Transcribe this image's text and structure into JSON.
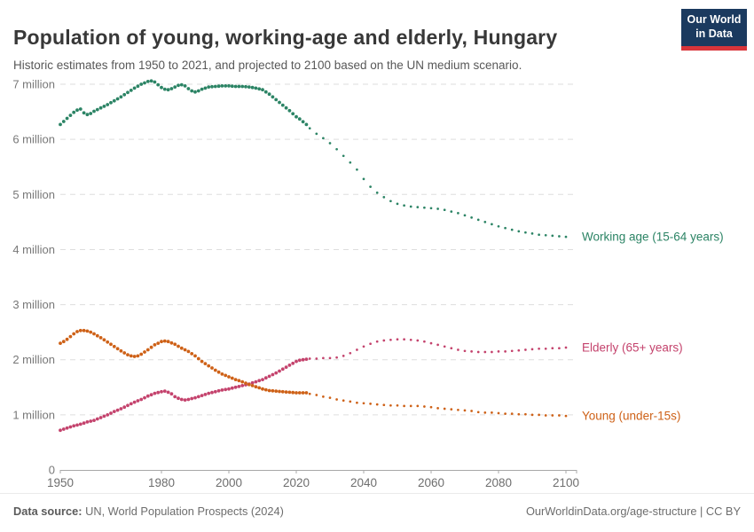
{
  "header": {
    "title": "Population of young, working-age and elderly, Hungary",
    "subtitle": "Historic estimates from 1950 to 2021, and projected to 2100 based on the UN medium scenario.",
    "logo_line1": "Our World",
    "logo_line2": "in Data"
  },
  "footer": {
    "source_label": "Data source:",
    "source_text": " UN, World Population Prospects (2024)",
    "link_text": "OurWorldinData.org/age-structure | CC BY"
  },
  "chart_data": {
    "type": "line",
    "title": "Population of young, working-age and elderly, Hungary",
    "xlabel": "",
    "ylabel": "",
    "grid": true,
    "legend_position": "right-end-labels",
    "x_axis": {
      "ticks": [
        1950,
        1980,
        2000,
        2020,
        2040,
        2060,
        2080,
        2100
      ],
      "range": [
        1950,
        2103
      ]
    },
    "y_axis": {
      "tick_values": [
        0,
        1,
        2,
        3,
        4,
        5,
        6,
        7
      ],
      "tick_labels": [
        "0",
        "1 million",
        "2 million",
        "3 million",
        "4 million",
        "5 million",
        "6 million",
        "7 million"
      ],
      "range": [
        0,
        7.3
      ],
      "unit": "people (millions)"
    },
    "projection_start_year": 2024,
    "series": [
      {
        "name": "Working age (15-64 years)",
        "color": "#2c8465",
        "historic": [
          [
            1950,
            6.27
          ],
          [
            1952,
            6.38
          ],
          [
            1954,
            6.49
          ],
          [
            1955,
            6.53
          ],
          [
            1956,
            6.55
          ],
          [
            1957,
            6.48
          ],
          [
            1958,
            6.45
          ],
          [
            1959,
            6.47
          ],
          [
            1960,
            6.51
          ],
          [
            1962,
            6.57
          ],
          [
            1964,
            6.63
          ],
          [
            1966,
            6.7
          ],
          [
            1968,
            6.77
          ],
          [
            1970,
            6.85
          ],
          [
            1972,
            6.93
          ],
          [
            1974,
            7.0
          ],
          [
            1976,
            7.05
          ],
          [
            1977,
            7.06
          ],
          [
            1978,
            7.04
          ],
          [
            1979,
            6.99
          ],
          [
            1980,
            6.94
          ],
          [
            1981,
            6.91
          ],
          [
            1982,
            6.9
          ],
          [
            1983,
            6.92
          ],
          [
            1984,
            6.95
          ],
          [
            1985,
            6.98
          ],
          [
            1986,
            6.99
          ],
          [
            1987,
            6.97
          ],
          [
            1988,
            6.92
          ],
          [
            1989,
            6.88
          ],
          [
            1990,
            6.86
          ],
          [
            1991,
            6.88
          ],
          [
            1992,
            6.91
          ],
          [
            1994,
            6.95
          ],
          [
            1996,
            6.96
          ],
          [
            1998,
            6.97
          ],
          [
            2000,
            6.97
          ],
          [
            2002,
            6.96
          ],
          [
            2004,
            6.96
          ],
          [
            2006,
            6.95
          ],
          [
            2008,
            6.93
          ],
          [
            2010,
            6.9
          ],
          [
            2012,
            6.82
          ],
          [
            2014,
            6.72
          ],
          [
            2016,
            6.62
          ],
          [
            2018,
            6.52
          ],
          [
            2020,
            6.41
          ],
          [
            2021,
            6.37
          ],
          [
            2022,
            6.32
          ],
          [
            2023,
            6.27
          ]
        ],
        "projected": [
          [
            2024,
            6.2
          ],
          [
            2026,
            6.1
          ],
          [
            2028,
            6.02
          ],
          [
            2030,
            5.93
          ],
          [
            2032,
            5.82
          ],
          [
            2034,
            5.7
          ],
          [
            2036,
            5.58
          ],
          [
            2038,
            5.45
          ],
          [
            2040,
            5.28
          ],
          [
            2042,
            5.14
          ],
          [
            2044,
            5.03
          ],
          [
            2046,
            4.95
          ],
          [
            2048,
            4.88
          ],
          [
            2050,
            4.83
          ],
          [
            2052,
            4.8
          ],
          [
            2054,
            4.78
          ],
          [
            2056,
            4.77
          ],
          [
            2058,
            4.76
          ],
          [
            2060,
            4.75
          ],
          [
            2062,
            4.74
          ],
          [
            2064,
            4.72
          ],
          [
            2066,
            4.69
          ],
          [
            2068,
            4.66
          ],
          [
            2070,
            4.62
          ],
          [
            2072,
            4.58
          ],
          [
            2074,
            4.54
          ],
          [
            2076,
            4.5
          ],
          [
            2078,
            4.46
          ],
          [
            2080,
            4.42
          ],
          [
            2082,
            4.39
          ],
          [
            2084,
            4.36
          ],
          [
            2086,
            4.33
          ],
          [
            2088,
            4.31
          ],
          [
            2090,
            4.29
          ],
          [
            2092,
            4.27
          ],
          [
            2094,
            4.26
          ],
          [
            2096,
            4.25
          ],
          [
            2098,
            4.24
          ],
          [
            2100,
            4.23
          ]
        ]
      },
      {
        "name": "Elderly (65+ years)",
        "color": "#c4436d",
        "historic": [
          [
            1950,
            0.72
          ],
          [
            1952,
            0.76
          ],
          [
            1954,
            0.8
          ],
          [
            1956,
            0.83
          ],
          [
            1958,
            0.87
          ],
          [
            1960,
            0.9
          ],
          [
            1962,
            0.95
          ],
          [
            1964,
            1.0
          ],
          [
            1966,
            1.06
          ],
          [
            1968,
            1.11
          ],
          [
            1970,
            1.17
          ],
          [
            1972,
            1.23
          ],
          [
            1974,
            1.28
          ],
          [
            1976,
            1.34
          ],
          [
            1978,
            1.39
          ],
          [
            1980,
            1.42
          ],
          [
            1981,
            1.43
          ],
          [
            1982,
            1.41
          ],
          [
            1983,
            1.38
          ],
          [
            1984,
            1.33
          ],
          [
            1985,
            1.3
          ],
          [
            1986,
            1.28
          ],
          [
            1987,
            1.27
          ],
          [
            1988,
            1.28
          ],
          [
            1990,
            1.31
          ],
          [
            1992,
            1.35
          ],
          [
            1994,
            1.39
          ],
          [
            1996,
            1.42
          ],
          [
            1998,
            1.45
          ],
          [
            2000,
            1.47
          ],
          [
            2002,
            1.5
          ],
          [
            2004,
            1.53
          ],
          [
            2006,
            1.56
          ],
          [
            2008,
            1.6
          ],
          [
            2010,
            1.64
          ],
          [
            2012,
            1.7
          ],
          [
            2014,
            1.76
          ],
          [
            2016,
            1.83
          ],
          [
            2018,
            1.9
          ],
          [
            2020,
            1.97
          ],
          [
            2021,
            1.99
          ],
          [
            2022,
            2.0
          ],
          [
            2023,
            2.01
          ]
        ],
        "projected": [
          [
            2024,
            2.02
          ],
          [
            2026,
            2.02
          ],
          [
            2028,
            2.03
          ],
          [
            2030,
            2.03
          ],
          [
            2032,
            2.04
          ],
          [
            2034,
            2.07
          ],
          [
            2036,
            2.12
          ],
          [
            2038,
            2.18
          ],
          [
            2040,
            2.24
          ],
          [
            2042,
            2.29
          ],
          [
            2044,
            2.33
          ],
          [
            2046,
            2.35
          ],
          [
            2048,
            2.36
          ],
          [
            2050,
            2.37
          ],
          [
            2052,
            2.37
          ],
          [
            2054,
            2.36
          ],
          [
            2056,
            2.35
          ],
          [
            2058,
            2.33
          ],
          [
            2060,
            2.3
          ],
          [
            2062,
            2.27
          ],
          [
            2064,
            2.24
          ],
          [
            2066,
            2.21
          ],
          [
            2068,
            2.18
          ],
          [
            2070,
            2.16
          ],
          [
            2072,
            2.15
          ],
          [
            2074,
            2.14
          ],
          [
            2076,
            2.14
          ],
          [
            2078,
            2.14
          ],
          [
            2080,
            2.15
          ],
          [
            2082,
            2.15
          ],
          [
            2084,
            2.16
          ],
          [
            2086,
            2.17
          ],
          [
            2088,
            2.18
          ],
          [
            2090,
            2.19
          ],
          [
            2092,
            2.2
          ],
          [
            2094,
            2.2
          ],
          [
            2096,
            2.21
          ],
          [
            2098,
            2.21
          ],
          [
            2100,
            2.22
          ]
        ]
      },
      {
        "name": "Young (under-15s)",
        "color": "#ce6117",
        "historic": [
          [
            1950,
            2.3
          ],
          [
            1951,
            2.33
          ],
          [
            1952,
            2.37
          ],
          [
            1953,
            2.42
          ],
          [
            1954,
            2.47
          ],
          [
            1955,
            2.51
          ],
          [
            1956,
            2.53
          ],
          [
            1957,
            2.53
          ],
          [
            1958,
            2.52
          ],
          [
            1959,
            2.5
          ],
          [
            1960,
            2.47
          ],
          [
            1962,
            2.4
          ],
          [
            1964,
            2.32
          ],
          [
            1966,
            2.24
          ],
          [
            1968,
            2.16
          ],
          [
            1970,
            2.09
          ],
          [
            1971,
            2.07
          ],
          [
            1972,
            2.06
          ],
          [
            1973,
            2.07
          ],
          [
            1974,
            2.1
          ],
          [
            1976,
            2.18
          ],
          [
            1978,
            2.27
          ],
          [
            1980,
            2.33
          ],
          [
            1981,
            2.34
          ],
          [
            1982,
            2.33
          ],
          [
            1984,
            2.28
          ],
          [
            1986,
            2.21
          ],
          [
            1988,
            2.15
          ],
          [
            1990,
            2.07
          ],
          [
            1992,
            1.97
          ],
          [
            1994,
            1.89
          ],
          [
            1996,
            1.81
          ],
          [
            1998,
            1.74
          ],
          [
            2000,
            1.69
          ],
          [
            2002,
            1.64
          ],
          [
            2004,
            1.6
          ],
          [
            2006,
            1.55
          ],
          [
            2008,
            1.51
          ],
          [
            2010,
            1.47
          ],
          [
            2012,
            1.44
          ],
          [
            2014,
            1.43
          ],
          [
            2016,
            1.42
          ],
          [
            2018,
            1.41
          ],
          [
            2020,
            1.4
          ],
          [
            2021,
            1.4
          ],
          [
            2022,
            1.4
          ],
          [
            2023,
            1.4
          ]
        ],
        "projected": [
          [
            2024,
            1.38
          ],
          [
            2026,
            1.36
          ],
          [
            2028,
            1.33
          ],
          [
            2030,
            1.31
          ],
          [
            2032,
            1.28
          ],
          [
            2034,
            1.26
          ],
          [
            2036,
            1.24
          ],
          [
            2038,
            1.22
          ],
          [
            2040,
            1.21
          ],
          [
            2042,
            1.2
          ],
          [
            2044,
            1.19
          ],
          [
            2046,
            1.18
          ],
          [
            2048,
            1.17
          ],
          [
            2050,
            1.17
          ],
          [
            2052,
            1.16
          ],
          [
            2054,
            1.16
          ],
          [
            2056,
            1.16
          ],
          [
            2058,
            1.15
          ],
          [
            2060,
            1.14
          ],
          [
            2062,
            1.12
          ],
          [
            2064,
            1.11
          ],
          [
            2066,
            1.1
          ],
          [
            2068,
            1.09
          ],
          [
            2070,
            1.08
          ],
          [
            2072,
            1.07
          ],
          [
            2074,
            1.05
          ],
          [
            2076,
            1.04
          ],
          [
            2078,
            1.04
          ],
          [
            2080,
            1.03
          ],
          [
            2082,
            1.02
          ],
          [
            2084,
            1.02
          ],
          [
            2086,
            1.01
          ],
          [
            2088,
            1.01
          ],
          [
            2090,
            1.0
          ],
          [
            2092,
            1.0
          ],
          [
            2094,
            0.99
          ],
          [
            2096,
            0.99
          ],
          [
            2098,
            0.99
          ],
          [
            2100,
            0.98
          ]
        ]
      }
    ]
  }
}
